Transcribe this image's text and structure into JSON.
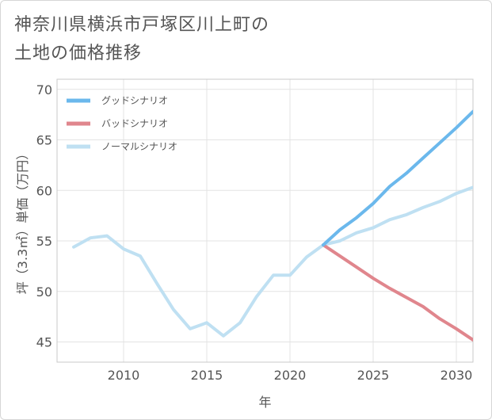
{
  "title_line1": "神奈川県横浜市戸塚区川上町の",
  "title_line2": "土地の価格推移",
  "chart_data": {
    "type": "line",
    "xlabel": "年",
    "ylabel": "坪（3.3㎡）単価（万円）",
    "xlim": [
      2006,
      2031
    ],
    "ylim": [
      43,
      71
    ],
    "xticks": [
      2010,
      2015,
      2020,
      2025,
      2030
    ],
    "yticks": [
      45,
      50,
      55,
      60,
      65,
      70
    ],
    "grid": true,
    "legend_position": "top-left",
    "series": [
      {
        "name": "グッドシナリオ",
        "color": "#6bb8ec",
        "x": [
          2022,
          2023,
          2024,
          2025,
          2026,
          2027,
          2028,
          2029,
          2030,
          2031
        ],
        "y": [
          54.6,
          56.1,
          57.3,
          58.7,
          60.4,
          61.7,
          63.2,
          64.7,
          66.2,
          67.8
        ]
      },
      {
        "name": "バッドシナリオ",
        "color": "#e0868d",
        "x": [
          2022,
          2023,
          2024,
          2025,
          2026,
          2027,
          2028,
          2029,
          2030,
          2031
        ],
        "y": [
          54.6,
          53.5,
          52.4,
          51.3,
          50.3,
          49.4,
          48.5,
          47.3,
          46.3,
          45.2
        ]
      },
      {
        "name": "ノーマルシナリオ",
        "color": "#bfe0f2",
        "x": [
          2007,
          2008,
          2009,
          2010,
          2011,
          2012,
          2013,
          2014,
          2015,
          2016,
          2017,
          2018,
          2019,
          2020,
          2021,
          2022,
          2023,
          2024,
          2025,
          2026,
          2027,
          2028,
          2029,
          2030,
          2031
        ],
        "y": [
          54.4,
          55.3,
          55.5,
          54.2,
          53.5,
          50.8,
          48.2,
          46.3,
          46.9,
          45.6,
          46.9,
          49.5,
          51.6,
          51.6,
          53.4,
          54.6,
          55.0,
          55.8,
          56.3,
          57.1,
          57.6,
          58.3,
          58.9,
          59.7,
          60.3
        ]
      }
    ]
  }
}
